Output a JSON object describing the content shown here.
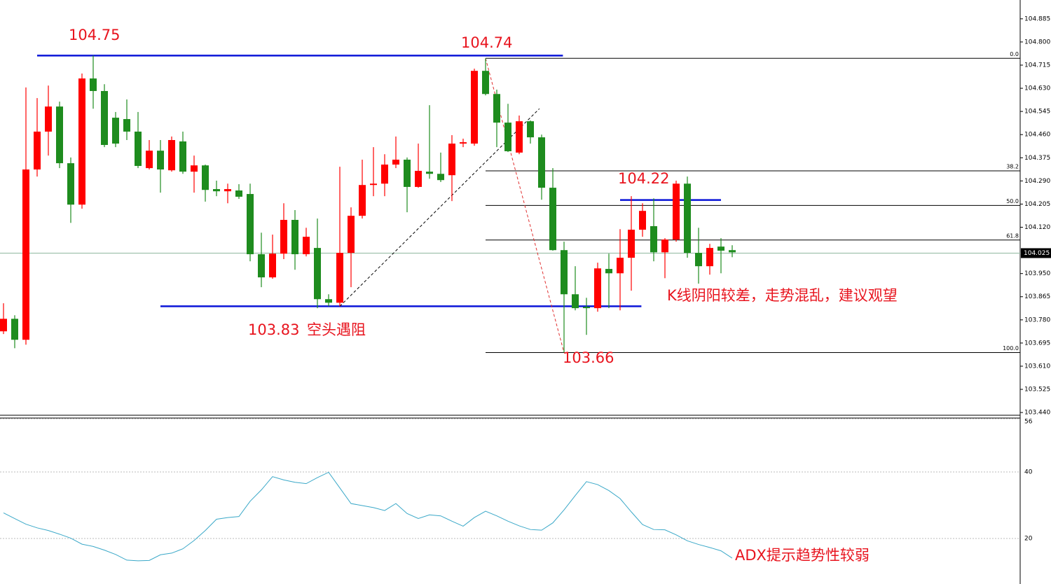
{
  "chart_data": [
    {
      "type": "candlestick",
      "open": [
        103.738,
        103.784,
        103.707,
        104.332,
        104.471,
        104.563,
        104.355,
        104.203,
        104.666,
        104.62,
        104.522,
        104.517,
        104.471,
        104.337,
        104.401,
        104.329,
        104.435,
        104.324,
        104.347,
        104.26,
        104.252,
        104.255,
        104.242,
        104.021,
        103.936,
        104.023,
        104.147,
        104.021,
        104.044,
        103.856,
        103.843,
        104.026,
        104.162,
        104.275,
        104.28,
        104.35,
        104.368,
        104.268,
        104.324,
        104.316,
        104.311,
        104.427,
        104.427,
        104.694,
        104.609,
        104.504,
        104.394,
        104.509,
        104.45,
        104.265,
        104.036,
        103.874,
        103.828,
        103.823,
        103.967,
        103.951,
        104.008,
        104.111,
        104.124,
        104.028,
        104.075,
        104.28,
        104.026,
        103.977,
        104.049,
        104.036
      ],
      "high": [
        103.841,
        103.797,
        104.633,
        104.594,
        104.64,
        104.581,
        104.376,
        104.684,
        104.75,
        104.645,
        104.543,
        104.589,
        104.543,
        104.44,
        104.44,
        104.453,
        104.471,
        104.383,
        104.35,
        104.291,
        104.28,
        104.278,
        104.28,
        104.1,
        104.093,
        104.208,
        104.183,
        104.118,
        104.152,
        103.874,
        104.342,
        104.193,
        104.368,
        104.414,
        104.388,
        104.453,
        104.376,
        104.427,
        104.568,
        104.394,
        104.458,
        104.445,
        104.702,
        104.74,
        104.625,
        104.573,
        104.53,
        104.512,
        104.46,
        104.337,
        104.067,
        103.977,
        103.861,
        103.99,
        104.023,
        104.113,
        104.234,
        104.208,
        104.226,
        104.08,
        104.291,
        104.306,
        104.118,
        104.059,
        104.08,
        104.054
      ],
      "low": [
        103.728,
        103.676,
        103.689,
        104.306,
        104.383,
        104.337,
        104.136,
        104.188,
        104.555,
        104.414,
        104.414,
        104.44,
        104.337,
        104.332,
        104.247,
        104.324,
        104.316,
        104.247,
        104.214,
        104.234,
        104.208,
        104.224,
        103.995,
        103.9,
        103.931,
        104.003,
        103.964,
        104.013,
        103.823,
        103.83,
        103.83,
        103.9,
        104.152,
        104.234,
        104.234,
        104.337,
        104.175,
        104.265,
        104.298,
        104.286,
        104.216,
        104.414,
        104.419,
        104.604,
        104.414,
        104.396,
        104.388,
        104.427,
        104.221,
        104.034,
        103.66,
        103.815,
        103.725,
        103.81,
        103.823,
        103.815,
        103.887,
        104.085,
        103.995,
        103.933,
        104.067,
        104.008,
        103.913,
        103.946,
        103.951,
        104.01
      ],
      "close": [
        103.784,
        103.707,
        104.332,
        104.471,
        104.563,
        104.355,
        104.203,
        104.666,
        104.62,
        104.422,
        104.427,
        104.471,
        104.345,
        104.401,
        104.332,
        104.44,
        104.324,
        104.347,
        104.257,
        104.252,
        104.26,
        104.232,
        104.021,
        103.936,
        104.023,
        104.147,
        104.021,
        104.085,
        103.856,
        103.843,
        104.026,
        104.162,
        104.275,
        104.28,
        104.35,
        104.368,
        104.268,
        104.327,
        104.316,
        104.293,
        104.427,
        104.432,
        104.694,
        104.609,
        104.504,
        104.399,
        104.509,
        104.45,
        104.265,
        104.036,
        103.874,
        103.823,
        103.823,
        103.969,
        103.951,
        104.008,
        104.111,
        104.18,
        104.028,
        104.075,
        104.28,
        104.026,
        103.977,
        104.044,
        104.034,
        104.028
      ],
      "up_color": "#ff0000",
      "down_color": "#1e8c1e",
      "ylim": [
        103.43,
        104.954
      ],
      "yticks": [
        104.885,
        {
          "value": 104.8,
          "label": "104.800"
        },
        104.715,
        {
          "value": 104.63,
          "label": "104.630"
        },
        104.545,
        {
          "value": 104.46,
          "label": "104.460"
        },
        104.375,
        {
          "value": 104.29,
          "label": "104.290"
        },
        104.205,
        {
          "value": 104.12,
          "label": "104.120"
        },
        {
          "value": 103.95,
          "label": "103.950"
        },
        103.865,
        {
          "value": 103.78,
          "label": "103.780"
        },
        103.695,
        {
          "value": 103.61,
          "label": "103.610"
        },
        103.525,
        {
          "value": 103.44,
          "label": "103.440"
        }
      ],
      "last_price": 104.025,
      "fib_levels": [
        {
          "label": "0.0",
          "value": 104.74
        },
        {
          "label": "38.2",
          "value": 104.327
        },
        {
          "label": "50.0",
          "value": 104.2
        },
        {
          "label": "61.8",
          "value": 104.073
        },
        {
          "label": "100.0",
          "value": 103.66
        }
      ],
      "levels": [
        {
          "value": 104.75,
          "from": 3,
          "to": 49.9
        },
        {
          "value": 103.83,
          "from": 14,
          "to": 56.9
        },
        {
          "value": 104.22,
          "from": 55,
          "to": 64
        }
      ],
      "trendlines": [
        {
          "x": [
            30,
            47.8
          ],
          "y": [
            103.83,
            104.555
          ],
          "color": "#000000"
        },
        {
          "x": [
            43,
            50
          ],
          "y": [
            104.74,
            103.66
          ],
          "color": "#e03030"
        }
      ],
      "annotations": [
        "104.75",
        "104.74",
        "104.22",
        "103.83",
        "空头遇阻",
        "103.66",
        "K线阴阳较差，走势混乱，建议观望",
        "ADX提示趋势性较弱"
      ]
    },
    {
      "type": "line",
      "values": [
        27.7,
        26.0,
        24.3,
        23.2,
        22.4,
        21.3,
        20.1,
        18.3,
        17.6,
        16.5,
        15.2,
        13.5,
        13.3,
        13.4,
        15.1,
        15.6,
        16.9,
        19.4,
        22.4,
        25.8,
        26.3,
        26.6,
        31.2,
        34.6,
        38.6,
        37.6,
        36.9,
        36.5,
        38.3,
        39.9,
        35.2,
        30.5,
        29.9,
        29.3,
        28.4,
        30.5,
        27.5,
        26.0,
        27.1,
        26.8,
        25.2,
        23.7,
        26.3,
        28.2,
        26.8,
        25.2,
        23.8,
        22.7,
        22.5,
        24.7,
        28.6,
        32.9,
        37.1,
        36.2,
        34.4,
        32.0,
        28.0,
        24.2,
        22.7,
        22.6,
        21.1,
        19.3,
        18.2,
        17.3,
        16.3,
        14.1
      ],
      "color": "#3aa8c8",
      "ylim": [
        6.32,
        56
      ],
      "yticks": [
        56,
        40,
        20
      ],
      "grid": true
    }
  ]
}
